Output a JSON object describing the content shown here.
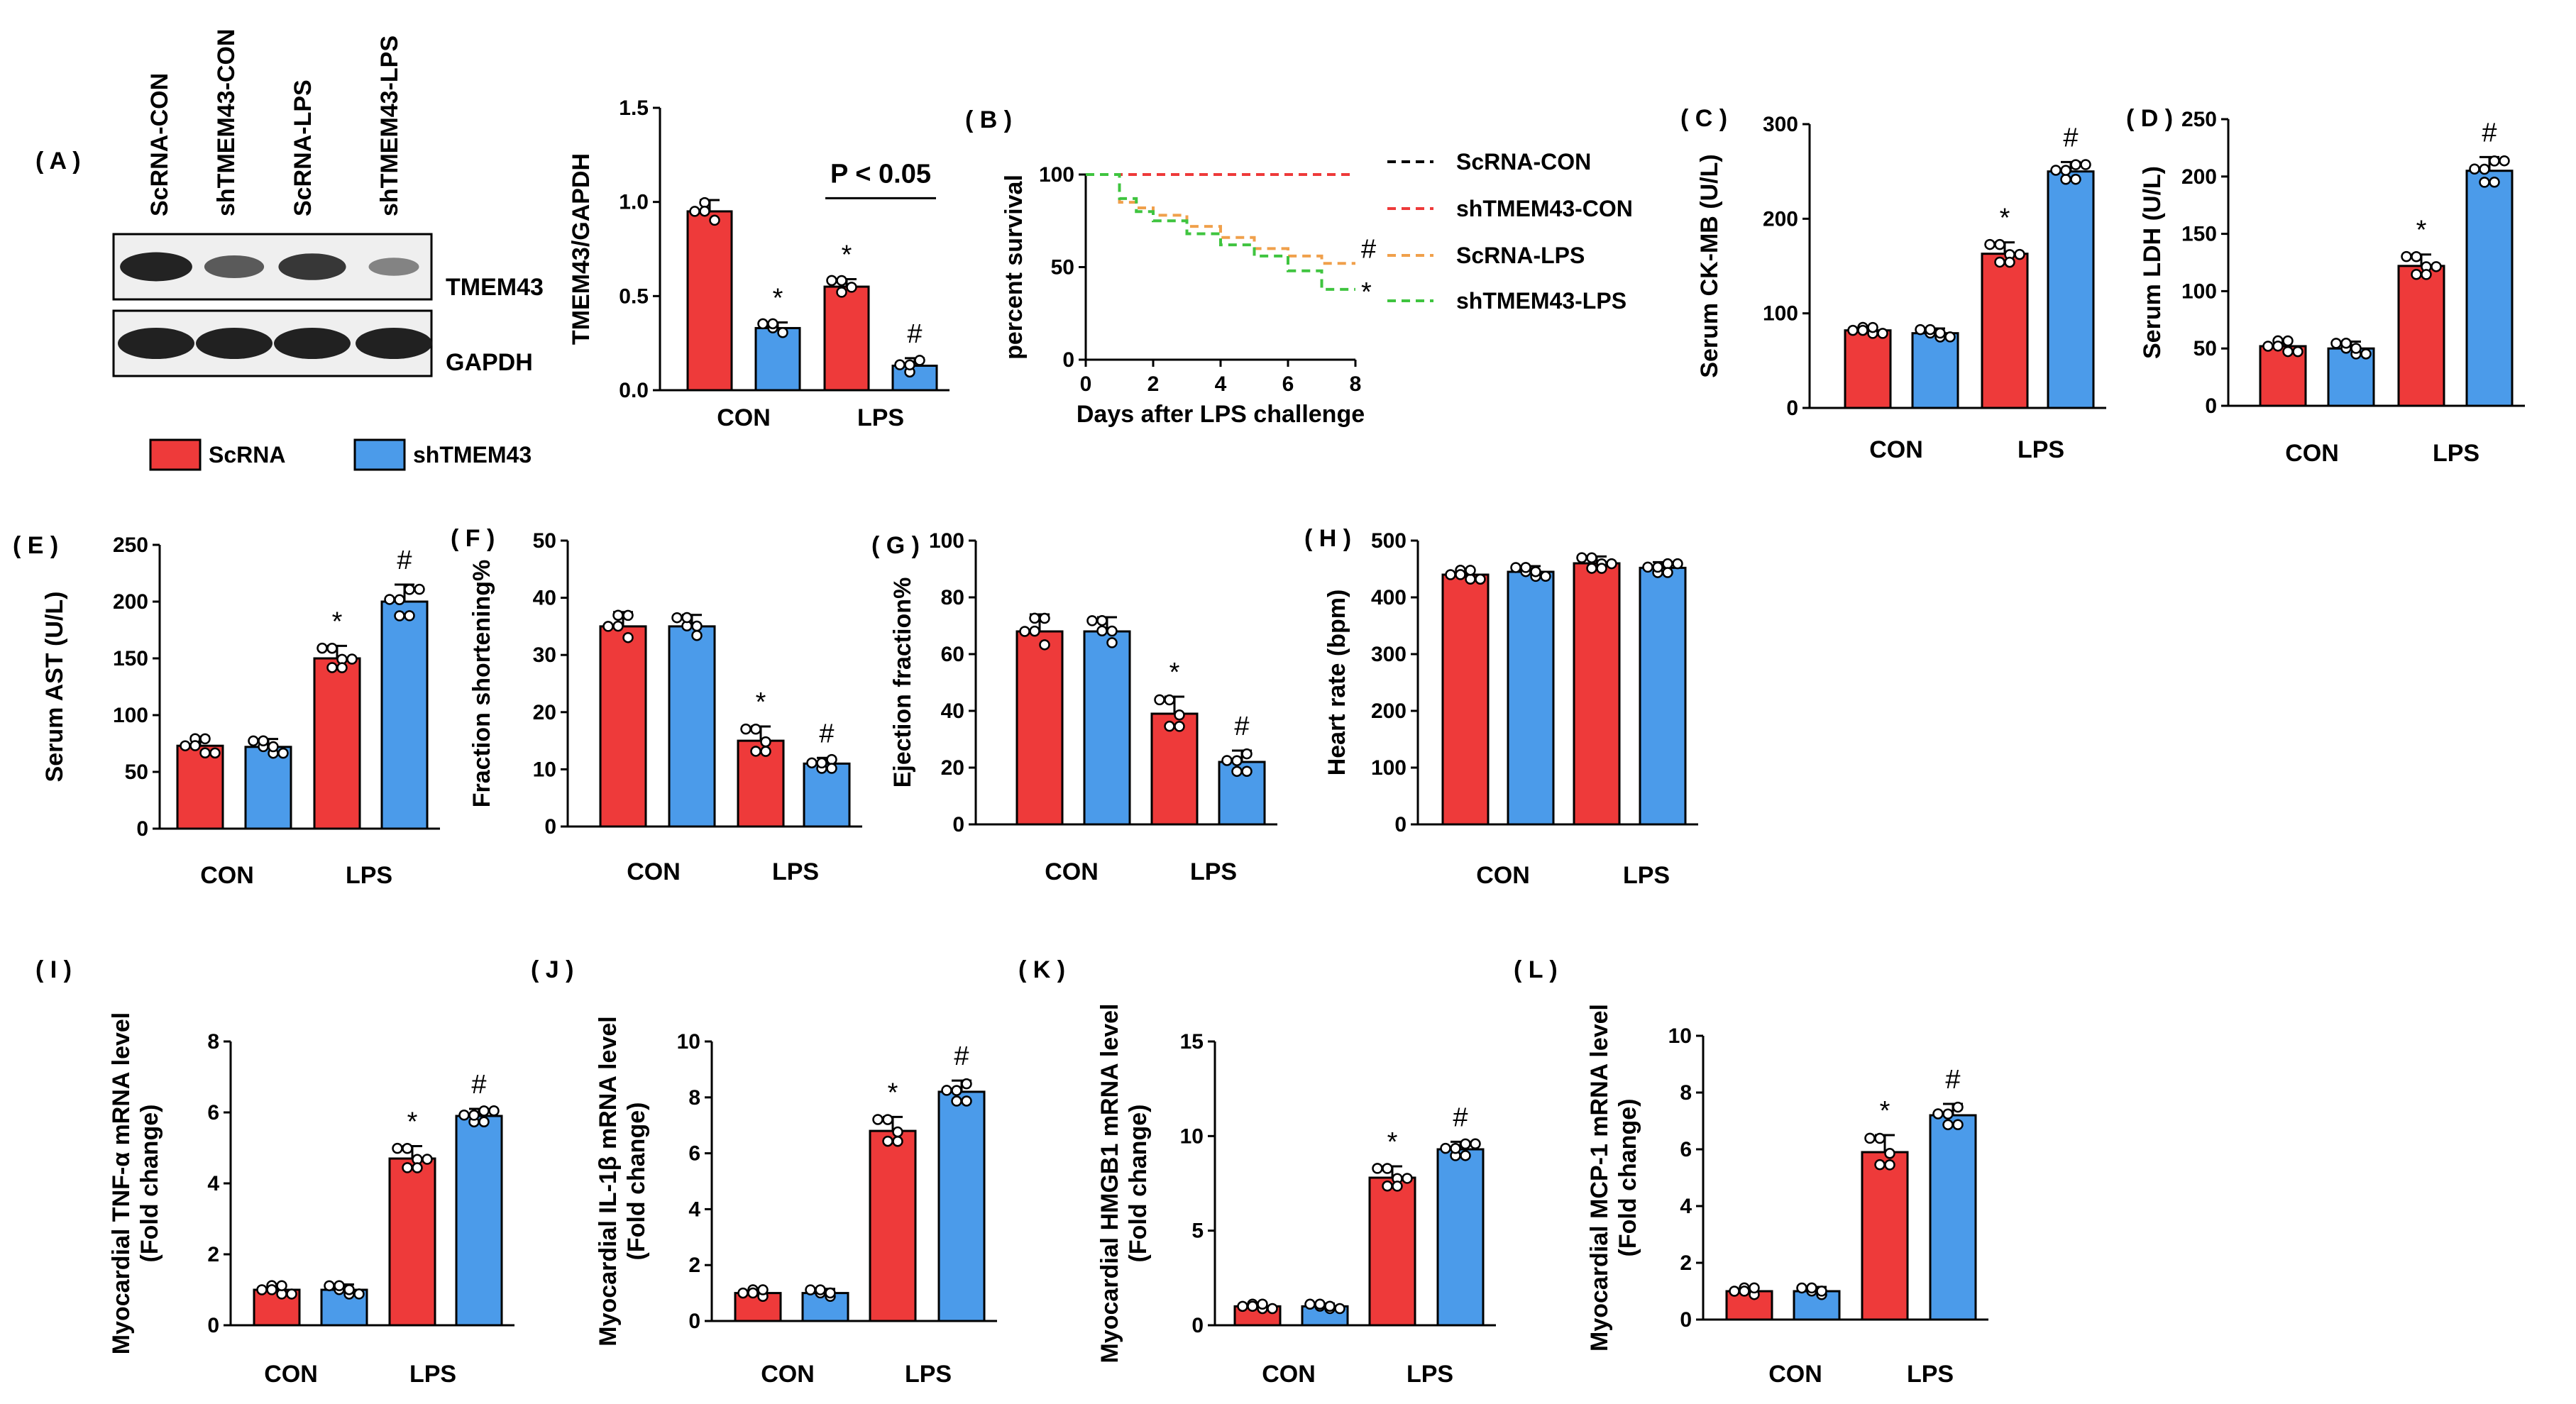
{
  "colors": {
    "scrna": "#ee3a3a",
    "shtmem43": "#4b9bea",
    "surv_scrna_con": "#000000",
    "surv_sh_con": "#ee3a3a",
    "surv_scrna_lps": "#f0a04b",
    "surv_sh_lps": "#3fc43f"
  },
  "legend": {
    "scrna": "ScRNA",
    "shtmem43": "shTMEM43"
  },
  "panel_labels": {
    "A": "( A )",
    "B": "( B )",
    "C": "( C )",
    "D": "( D )",
    "E": "( E )",
    "F": "( F )",
    "G": "( G )",
    "H": "( H )",
    "I": "( I )",
    "J": "( J )",
    "K": "( K )",
    "L": "( L )"
  },
  "western_blot": {
    "lanes": [
      "ScRNA-CON",
      "shTMEM43-CON",
      "ScRNA-LPS",
      "shTMEM43-LPS"
    ],
    "bands": [
      "TMEM43",
      "GAPDH"
    ],
    "tmem43_intensity": [
      0.95,
      0.55,
      0.8,
      0.25
    ],
    "gapdh_intensity": [
      1,
      1,
      1,
      1
    ]
  },
  "chart_data": [
    {
      "id": "A",
      "type": "bar",
      "categories": [
        "CON",
        "LPS"
      ],
      "ylabel": "TMEM43/GAPDH",
      "ylim": [
        0,
        1.5
      ],
      "yticks": [
        "0.0",
        "0.5",
        "1.0",
        "1.5"
      ],
      "series": [
        {
          "name": "ScRNA",
          "values": [
            0.95,
            0.55
          ]
        },
        {
          "name": "shTMEM43",
          "values": [
            0.33,
            0.13
          ]
        }
      ],
      "sd": [
        [
          0.06,
          0.04
        ],
        [
          0.03,
          0.04
        ]
      ],
      "n": 4,
      "marks": [
        [
          "",
          "*"
        ],
        [
          "*",
          "#"
        ]
      ],
      "annotation": "P < 0.05"
    },
    {
      "id": "B",
      "type": "line",
      "xlabel": "Days after LPS challenge",
      "ylabel": "percent survival",
      "xlim": [
        0,
        8
      ],
      "ylim": [
        0,
        100
      ],
      "xticks": [
        "0",
        "2",
        "4",
        "6",
        "8"
      ],
      "yticks": [
        "0",
        "50",
        "100"
      ],
      "series": [
        {
          "name": "ScRNA-CON",
          "x": [
            0,
            8
          ],
          "y": [
            100,
            100
          ]
        },
        {
          "name": "shTMEM43-CON",
          "x": [
            0,
            8
          ],
          "y": [
            100,
            100
          ]
        },
        {
          "name": "ScRNA-LPS",
          "x": [
            0,
            1,
            1.5,
            2,
            3,
            4,
            5,
            6,
            7,
            8
          ],
          "y": [
            100,
            85,
            82,
            78,
            72,
            66,
            60,
            56,
            52,
            52
          ]
        },
        {
          "name": "shTMEM43-LPS",
          "x": [
            0,
            1,
            1.5,
            2,
            3,
            4,
            5,
            6,
            7,
            8
          ],
          "y": [
            100,
            87,
            80,
            75,
            68,
            62,
            56,
            48,
            38,
            38
          ]
        }
      ],
      "end_marks": [
        "",
        "",
        "#",
        "*"
      ]
    },
    {
      "id": "C",
      "type": "bar",
      "categories": [
        "CON",
        "LPS"
      ],
      "ylabel": "Serum CK-MB (U/L)",
      "ylim": [
        0,
        300
      ],
      "yticks": [
        "0",
        "100",
        "200",
        "300"
      ],
      "series": [
        {
          "name": "ScRNA",
          "values": [
            82,
            163
          ]
        },
        {
          "name": "shTMEM43",
          "values": [
            79,
            250
          ]
        }
      ],
      "sd": [
        [
          4,
          12
        ],
        [
          5,
          10
        ]
      ],
      "n": 6,
      "marks": [
        [
          "",
          "*"
        ],
        [
          "",
          "#"
        ]
      ]
    },
    {
      "id": "D",
      "type": "bar",
      "categories": [
        "CON",
        "LPS"
      ],
      "ylabel": "Serum LDH (U/L)",
      "ylim": [
        0,
        250
      ],
      "yticks": [
        "0",
        "50",
        "100",
        "150",
        "200",
        "250"
      ],
      "series": [
        {
          "name": "ScRNA",
          "values": [
            52,
            122
          ]
        },
        {
          "name": "shTMEM43",
          "values": [
            50,
            205
          ]
        }
      ],
      "sd": [
        [
          6,
          10
        ],
        [
          6,
          12
        ]
      ],
      "n": 6,
      "marks": [
        [
          "",
          "*"
        ],
        [
          "",
          "#"
        ]
      ]
    },
    {
      "id": "E",
      "type": "bar",
      "categories": [
        "CON",
        "LPS"
      ],
      "ylabel": "Serum AST (U/L)",
      "ylim": [
        0,
        250
      ],
      "yticks": [
        "0",
        "50",
        "100",
        "150",
        "200",
        "250"
      ],
      "series": [
        {
          "name": "ScRNA",
          "values": [
            73,
            150
          ]
        },
        {
          "name": "shTMEM43",
          "values": [
            72,
            200
          ]
        }
      ],
      "sd": [
        [
          8,
          11
        ],
        [
          7,
          15
        ]
      ],
      "n": 6,
      "marks": [
        [
          "",
          "*"
        ],
        [
          "",
          "#"
        ]
      ]
    },
    {
      "id": "F",
      "type": "bar",
      "categories": [
        "CON",
        "LPS"
      ],
      "ylabel": "Fraction shortening%",
      "ylim": [
        0,
        50
      ],
      "yticks": [
        "0",
        "10",
        "20",
        "30",
        "40",
        "50"
      ],
      "series": [
        {
          "name": "ScRNA",
          "values": [
            35,
            15
          ]
        },
        {
          "name": "shTMEM43",
          "values": [
            35,
            11
          ]
        }
      ],
      "sd": [
        [
          2.5,
          2.5
        ],
        [
          2,
          1
        ]
      ],
      "n": 5,
      "marks": [
        [
          "",
          "*"
        ],
        [
          "",
          "#"
        ]
      ]
    },
    {
      "id": "G",
      "type": "bar",
      "categories": [
        "CON",
        "LPS"
      ],
      "ylabel": "Ejection fraction%",
      "ylim": [
        0,
        100
      ],
      "yticks": [
        "0",
        "20",
        "40",
        "60",
        "80",
        "100"
      ],
      "series": [
        {
          "name": "ScRNA",
          "values": [
            68,
            39
          ]
        },
        {
          "name": "shTMEM43",
          "values": [
            68,
            22
          ]
        }
      ],
      "sd": [
        [
          6,
          6
        ],
        [
          5,
          4
        ]
      ],
      "n": 5,
      "marks": [
        [
          "",
          "*"
        ],
        [
          "",
          "#"
        ]
      ]
    },
    {
      "id": "H",
      "type": "bar",
      "categories": [
        "CON",
        "LPS"
      ],
      "ylabel": "Heart rate (bpm)",
      "ylim": [
        0,
        500
      ],
      "yticks": [
        "0",
        "100",
        "200",
        "300",
        "400",
        "500"
      ],
      "series": [
        {
          "name": "ScRNA",
          "values": [
            440,
            460
          ]
        },
        {
          "name": "shTMEM43",
          "values": [
            445,
            452
          ]
        }
      ],
      "sd": [
        [
          10,
          12
        ],
        [
          10,
          10
        ]
      ],
      "n": 6,
      "marks": [
        [
          "",
          ""
        ],
        [
          "",
          ""
        ]
      ]
    },
    {
      "id": "I",
      "type": "bar",
      "categories": [
        "CON",
        "LPS"
      ],
      "ylabel": "Myocardial TNF-α mRNA level",
      "ylabel2": "(Fold change)",
      "ylim": [
        0,
        8
      ],
      "yticks": [
        "0",
        "2",
        "4",
        "6",
        "8"
      ],
      "series": [
        {
          "name": "ScRNA",
          "values": [
            1.0,
            4.7
          ]
        },
        {
          "name": "shTMEM43",
          "values": [
            1.0,
            5.9
          ]
        }
      ],
      "sd": [
        [
          0.15,
          0.35
        ],
        [
          0.15,
          0.2
        ]
      ],
      "n": 6,
      "marks": [
        [
          "",
          "*"
        ],
        [
          "",
          "#"
        ]
      ]
    },
    {
      "id": "J",
      "type": "bar",
      "categories": [
        "CON",
        "LPS"
      ],
      "ylabel": "Myocardial IL-1β mRNA level",
      "ylabel2": "(Fold change)",
      "ylim": [
        0,
        10
      ],
      "yticks": [
        "0",
        "2",
        "4",
        "6",
        "8",
        "10"
      ],
      "series": [
        {
          "name": "ScRNA",
          "values": [
            1.0,
            6.8
          ]
        },
        {
          "name": "shTMEM43",
          "values": [
            1.0,
            8.2
          ]
        }
      ],
      "sd": [
        [
          0.15,
          0.5
        ],
        [
          0.15,
          0.4
        ]
      ],
      "n": 5,
      "marks": [
        [
          "",
          "*"
        ],
        [
          "",
          "#"
        ]
      ]
    },
    {
      "id": "K",
      "type": "bar",
      "categories": [
        "CON",
        "LPS"
      ],
      "ylabel": "Myocardial HMGB1 mRNA level",
      "ylabel2": "(Fold change)",
      "ylim": [
        0,
        15
      ],
      "yticks": [
        "0",
        "5",
        "10",
        "15"
      ],
      "series": [
        {
          "name": "ScRNA",
          "values": [
            1.0,
            7.8
          ]
        },
        {
          "name": "shTMEM43",
          "values": [
            1.0,
            9.3
          ]
        }
      ],
      "sd": [
        [
          0.15,
          0.6
        ],
        [
          0.15,
          0.4
        ]
      ],
      "n": 6,
      "marks": [
        [
          "",
          "*"
        ],
        [
          "",
          "#"
        ]
      ]
    },
    {
      "id": "L",
      "type": "bar",
      "categories": [
        "CON",
        "LPS"
      ],
      "ylabel": "Myocardial MCP-1 mRNA level",
      "ylabel2": "(Fold change)",
      "ylim": [
        0,
        10
      ],
      "yticks": [
        "0",
        "2",
        "4",
        "6",
        "8",
        "10"
      ],
      "series": [
        {
          "name": "ScRNA",
          "values": [
            1.0,
            5.9
          ]
        },
        {
          "name": "shTMEM43",
          "values": [
            1.0,
            7.2
          ]
        }
      ],
      "sd": [
        [
          0.15,
          0.6
        ],
        [
          0.15,
          0.4
        ]
      ],
      "n": 5,
      "marks": [
        [
          "",
          "*"
        ],
        [
          "",
          "#"
        ]
      ]
    }
  ]
}
